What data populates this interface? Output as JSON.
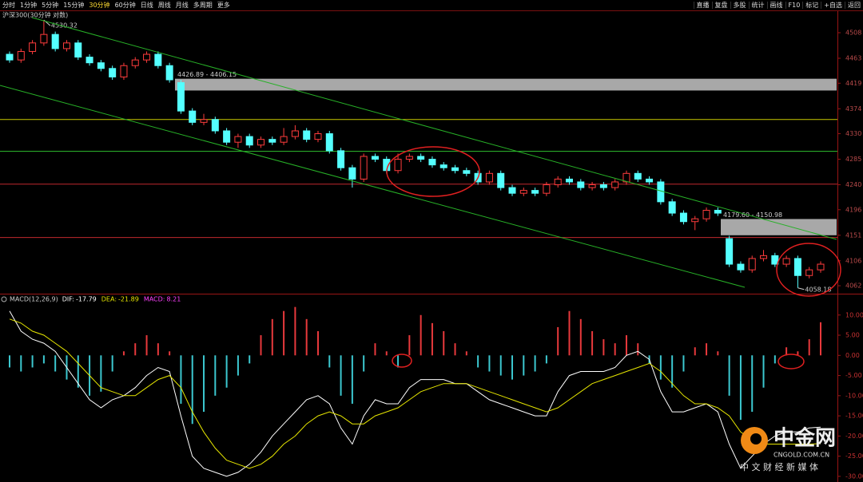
{
  "toolbar": {
    "left_tabs": [
      {
        "label": "分时"
      },
      {
        "label": "1分钟"
      },
      {
        "label": "5分钟"
      },
      {
        "label": "15分钟"
      },
      {
        "label": "30分钟",
        "active": true
      },
      {
        "label": "60分钟"
      },
      {
        "label": "日线"
      },
      {
        "label": "周线"
      },
      {
        "label": "月线"
      },
      {
        "label": "多周期"
      },
      {
        "label": "更多"
      }
    ],
    "right_tabs": [
      {
        "label": "直播"
      },
      {
        "label": "复盘"
      },
      {
        "label": "多股"
      },
      {
        "label": "统计"
      },
      {
        "label": "画线"
      },
      {
        "label": "F10"
      },
      {
        "label": "标记"
      },
      {
        "label": "+自选"
      },
      {
        "label": "返回"
      }
    ]
  },
  "watermark": {
    "name": "中金网",
    "site": "CNGOLD.COM.CN",
    "slogan": "中 文 财 经 新 媒 体"
  },
  "chart_data": [
    {
      "type": "candlestick",
      "title": "沪深300(30分钟 对数)",
      "up_color": "#ff3c3c",
      "down_color": "#54ffff",
      "open": [
        4470,
        4460,
        4475,
        4490,
        4505,
        4480,
        4490,
        4465,
        4455,
        4445,
        4430,
        4450,
        4460,
        4470,
        4450,
        4420,
        4370,
        4350,
        4355,
        4335,
        4315,
        4325,
        4310,
        4320,
        4315,
        4325,
        4335,
        4320,
        4330,
        4300,
        4270,
        4250,
        4290,
        4285,
        4265,
        4285,
        4290,
        4285,
        4275,
        4270,
        4265,
        4260,
        4245,
        4260,
        4235,
        4225,
        4230,
        4225,
        4240,
        4250,
        4245,
        4235,
        4240,
        4235,
        4245,
        4260,
        4250,
        4245,
        4210,
        4190,
        4175,
        4180,
        4195,
        4145,
        4100,
        4090,
        4110,
        4115,
        4100,
        4110,
        4080,
        4090
      ],
      "high": [
        4475,
        4480,
        4495,
        4530.32,
        4510,
        4495,
        4495,
        4470,
        4460,
        4450,
        4455,
        4465,
        4475,
        4475,
        4455,
        4425,
        4375,
        4365,
        4360,
        4340,
        4330,
        4330,
        4325,
        4325,
        4340,
        4345,
        4340,
        4335,
        4335,
        4305,
        4275,
        4295,
        4295,
        4290,
        4295,
        4295,
        4295,
        4290,
        4280,
        4275,
        4270,
        4265,
        4265,
        4265,
        4240,
        4235,
        4235,
        4245,
        4255,
        4255,
        4250,
        4245,
        4245,
        4250,
        4265,
        4265,
        4255,
        4250,
        4215,
        4195,
        4185,
        4200,
        4200,
        4150,
        4105,
        4115,
        4125,
        4120,
        4115,
        4115,
        4095,
        4105
      ],
      "low": [
        4455,
        4455,
        4470,
        4485,
        4475,
        4475,
        4460,
        4450,
        4440,
        4425,
        4425,
        4445,
        4455,
        4445,
        4420,
        4365,
        4345,
        4345,
        4330,
        4310,
        4305,
        4305,
        4305,
        4310,
        4310,
        4320,
        4315,
        4315,
        4295,
        4265,
        4235,
        4245,
        4280,
        4260,
        4260,
        4280,
        4280,
        4270,
        4265,
        4260,
        4255,
        4240,
        4240,
        4230,
        4220,
        4220,
        4220,
        4220,
        4235,
        4240,
        4230,
        4230,
        4230,
        4230,
        4240,
        4245,
        4240,
        4205,
        4185,
        4170,
        4160,
        4175,
        4185,
        4095,
        4085,
        4085,
        4105,
        4095,
        4095,
        4058.18,
        4075,
        4085
      ],
      "close": [
        4460,
        4475,
        4490,
        4505,
        4480,
        4490,
        4465,
        4455,
        4445,
        4430,
        4450,
        4460,
        4470,
        4450,
        4425,
        4370,
        4350,
        4355,
        4335,
        4315,
        4325,
        4310,
        4320,
        4315,
        4325,
        4335,
        4320,
        4330,
        4300,
        4270,
        4250,
        4290,
        4285,
        4265,
        4285,
        4290,
        4285,
        4275,
        4270,
        4265,
        4260,
        4245,
        4260,
        4235,
        4225,
        4230,
        4225,
        4240,
        4250,
        4245,
        4235,
        4240,
        4235,
        4245,
        4260,
        4250,
        4245,
        4210,
        4190,
        4175,
        4180,
        4195,
        4190,
        4100,
        4090,
        4110,
        4115,
        4100,
        4110,
        4080,
        4090,
        4100
      ],
      "ylim": [
        4048,
        4546
      ],
      "yticks": [
        4508,
        4463,
        4419,
        4374,
        4330,
        4285,
        4240,
        4196,
        4151,
        4106,
        4062
      ],
      "levels": [
        {
          "value": 4355,
          "color": "#c8c800"
        },
        {
          "value": 4299,
          "color": "#2fbf2f"
        },
        {
          "value": 4241,
          "color": "#c0282d"
        },
        {
          "value": 4147,
          "color": "#c0282d"
        }
      ],
      "zones": [
        {
          "high": 4426.89,
          "low": 4406.15,
          "label": "4426.89 - 4406.15"
        },
        {
          "high": 4179.6,
          "low": 4150.98,
          "label": "4179.60 - 4150.98"
        }
      ]
    },
    {
      "type": "macd",
      "title": "MACD(12,26,9)",
      "legend": [
        {
          "name": "DIF:",
          "key": "dif",
          "color": "#ffffff"
        },
        {
          "name": "DEA:",
          "key": "dea",
          "color": "#e6e600"
        },
        {
          "name": "MACD:",
          "key": "macd",
          "color": "#ff40ff"
        }
      ],
      "pos_color": "#e8393c",
      "neg_color": "#3cc8d0",
      "macd": [
        -3,
        -4,
        -3,
        -2,
        -4,
        -6,
        -8,
        -10,
        -9,
        -4,
        1,
        3,
        5,
        3,
        1,
        -12,
        -17,
        -14,
        -10,
        -8,
        -5,
        -2,
        5,
        9,
        11,
        12,
        9,
        6,
        -3,
        -10,
        -12,
        -4,
        3,
        1,
        -3,
        5,
        10,
        8,
        6,
        3,
        1,
        -3,
        -4,
        -5,
        -6,
        -5,
        -4,
        -2,
        7,
        11,
        9,
        6,
        4,
        3,
        5,
        3,
        -2,
        -6,
        -8,
        -4,
        2,
        3,
        1,
        -10,
        -16,
        -14,
        -8,
        -2,
        2,
        1,
        4,
        8.21
      ],
      "dif": [
        11,
        6,
        4,
        3,
        1,
        -3,
        -7,
        -11,
        -13,
        -11,
        -10,
        -8,
        -5,
        -3,
        -4,
        -15,
        -25,
        -28,
        -29,
        -30,
        -29,
        -27,
        -24,
        -20,
        -17,
        -14,
        -11,
        -10,
        -12,
        -18,
        -22,
        -15,
        -11,
        -12,
        -12,
        -8,
        -6,
        -6,
        -6,
        -7,
        -7,
        -9,
        -11,
        -12,
        -13,
        -14,
        -15,
        -15,
        -9,
        -5,
        -4,
        -4,
        -4,
        -3,
        0,
        1,
        -1,
        -9,
        -14,
        -14,
        -13,
        -12,
        -14,
        -22,
        -28,
        -25,
        -22,
        -20,
        -19,
        -19,
        -18,
        -17.79
      ],
      "dea": [
        9,
        8,
        6,
        5,
        3,
        1,
        -2,
        -5,
        -8,
        -9,
        -10,
        -10,
        -8,
        -6,
        -5,
        -8,
        -14,
        -19,
        -23,
        -26,
        -27,
        -28,
        -27,
        -25,
        -22,
        -20,
        -17,
        -15,
        -14,
        -15,
        -17,
        -17,
        -15,
        -14,
        -13,
        -11,
        -9,
        -8,
        -7,
        -7,
        -7,
        -8,
        -9,
        -10,
        -11,
        -12,
        -13,
        -14,
        -13,
        -11,
        -9,
        -7,
        -6,
        -5,
        -4,
        -3,
        -2,
        -4,
        -7,
        -10,
        -12,
        -12,
        -13,
        -15,
        -19,
        -21,
        -22,
        -22,
        -22,
        -22,
        -22,
        -21.89
      ],
      "ylim": [
        -31.4,
        14.9
      ],
      "yticks": [
        {
          "value": 10,
          "label": "10.00"
        },
        {
          "value": 5,
          "label": "5.00"
        },
        {
          "value": 0,
          "label": "0.00"
        },
        {
          "value": -5,
          "label": "-5.00"
        },
        {
          "value": -10,
          "label": "-10.00"
        },
        {
          "value": -15,
          "label": "-15.00"
        },
        {
          "value": -20,
          "label": "-20.00"
        },
        {
          "value": -25,
          "label": "-25.00"
        },
        {
          "value": -30,
          "label": "-30.00"
        }
      ]
    }
  ]
}
